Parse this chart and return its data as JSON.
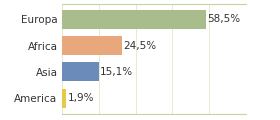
{
  "categories": [
    "America",
    "Asia",
    "Africa",
    "Europa"
  ],
  "values": [
    1.9,
    15.1,
    24.5,
    58.5
  ],
  "colors": [
    "#e8c84a",
    "#6b8cba",
    "#e8a87c",
    "#a8bc8c"
  ],
  "labels": [
    "1,9%",
    "15,1%",
    "24,5%",
    "58,5%"
  ],
  "xlim": [
    0,
    75
  ],
  "background_color": "#ffffff",
  "bar_height": 0.72,
  "label_fontsize": 7.5,
  "tick_fontsize": 7.5,
  "figsize": [
    2.8,
    1.2
  ],
  "dpi": 100
}
